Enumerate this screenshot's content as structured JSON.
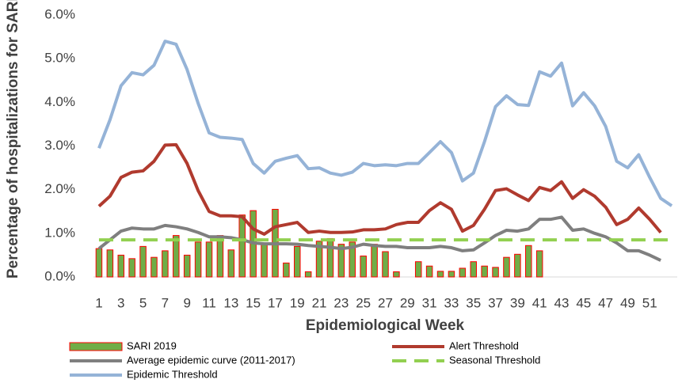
{
  "chart_data": {
    "type": "bar-line",
    "y_label": "Percentage of hospitalizations for SARI",
    "x_label": "Epidemiological Week",
    "categories": [
      "1",
      null,
      "3",
      null,
      "5",
      null,
      "7",
      null,
      "9",
      null,
      "11",
      null,
      "13",
      null,
      "15",
      null,
      "17",
      null,
      "19",
      null,
      "21",
      null,
      "23",
      null,
      "25",
      null,
      "27",
      null,
      "29",
      null,
      "31",
      null,
      "33",
      null,
      "35",
      null,
      "37",
      null,
      "39",
      null,
      "41",
      null,
      "43",
      null,
      "45",
      null,
      "47",
      null,
      "49",
      null,
      "51",
      null,
      null
    ],
    "ylim": [
      0,
      6
    ],
    "yticks": [
      {
        "value": 0,
        "label": "0.0%"
      },
      {
        "value": 1,
        "label": "1.0%"
      },
      {
        "value": 2,
        "label": "2.0%"
      },
      {
        "value": 3,
        "label": "3.0%"
      },
      {
        "value": 4,
        "label": "4.0%"
      },
      {
        "value": 5,
        "label": "5.0%"
      },
      {
        "value": 6,
        "label": "6.0%"
      }
    ],
    "grid": false,
    "series": [
      {
        "name": "SARI 2019",
        "kind": "bar",
        "color": "#70ad47",
        "edge_color": "#ff0000",
        "values": [
          0.65,
          0.62,
          0.5,
          0.42,
          0.7,
          0.45,
          0.6,
          0.95,
          0.5,
          0.8,
          0.8,
          0.95,
          0.62,
          1.42,
          1.52,
          0.75,
          1.55,
          0.32,
          0.7,
          0.12,
          0.82,
          0.88,
          0.75,
          0.8,
          0.48,
          0.75,
          0.58,
          0.12,
          null,
          0.35,
          0.25,
          0.13,
          0.13,
          0.2,
          0.35,
          0.25,
          0.22,
          0.45,
          0.52,
          0.72,
          0.6,
          null,
          null,
          null,
          null,
          null,
          null,
          null,
          null,
          null,
          null,
          null,
          null
        ]
      },
      {
        "name": "Alert Threshold",
        "kind": "line",
        "color": "#b03a2e",
        "dashed": false,
        "values": [
          1.62,
          1.85,
          2.28,
          2.4,
          2.43,
          2.65,
          3.02,
          3.03,
          2.6,
          1.98,
          1.5,
          1.4,
          1.4,
          1.38,
          1.1,
          0.98,
          1.15,
          1.2,
          1.25,
          1.02,
          1.05,
          1.02,
          1.02,
          1.03,
          1.08,
          1.08,
          1.1,
          1.2,
          1.25,
          1.25,
          1.52,
          1.7,
          1.55,
          1.05,
          1.18,
          1.55,
          1.98,
          2.02,
          1.88,
          1.75,
          2.05,
          1.98,
          2.18,
          1.8,
          2.0,
          1.85,
          1.6,
          1.2,
          1.32,
          1.58,
          1.32,
          1.02,
          null
        ]
      },
      {
        "name": "Average epidemic curve (2011-2017)",
        "kind": "line",
        "color": "#7f7f7f",
        "dashed": false,
        "values": [
          0.65,
          0.85,
          1.05,
          1.12,
          1.1,
          1.1,
          1.18,
          1.15,
          1.1,
          1.02,
          0.92,
          0.92,
          0.9,
          0.85,
          0.78,
          0.76,
          0.76,
          0.76,
          0.75,
          0.72,
          0.7,
          0.68,
          0.65,
          0.68,
          0.75,
          0.72,
          0.7,
          0.7,
          0.67,
          0.67,
          0.67,
          0.7,
          0.67,
          0.6,
          0.62,
          0.78,
          0.95,
          1.07,
          1.05,
          1.1,
          1.32,
          1.32,
          1.37,
          1.07,
          1.1,
          1.0,
          0.92,
          0.78,
          0.6,
          0.6,
          0.5,
          0.38,
          null
        ]
      },
      {
        "name": "Seasonal Threshold",
        "kind": "line",
        "color": "#92d050",
        "dashed": true,
        "values": [
          0.85,
          0.85,
          0.85,
          0.85,
          0.85,
          0.85,
          0.85,
          0.85,
          0.85,
          0.85,
          0.85,
          0.85,
          0.85,
          0.85,
          0.85,
          0.85,
          0.85,
          0.85,
          0.85,
          0.85,
          0.85,
          0.85,
          0.85,
          0.85,
          0.85,
          0.85,
          0.85,
          0.85,
          0.85,
          0.85,
          0.85,
          0.85,
          0.85,
          0.85,
          0.85,
          0.85,
          0.85,
          0.85,
          0.85,
          0.85,
          0.85,
          0.85,
          0.85,
          0.85,
          0.85,
          0.85,
          0.85,
          0.85,
          0.85,
          0.85,
          0.85,
          0.85,
          0.85
        ]
      },
      {
        "name": "Epidemic Threshold",
        "kind": "line",
        "color": "#95b3d7",
        "dashed": false,
        "values": [
          2.95,
          3.6,
          4.38,
          4.68,
          4.63,
          4.85,
          5.4,
          5.33,
          4.75,
          3.98,
          3.3,
          3.2,
          3.18,
          3.15,
          2.6,
          2.38,
          2.65,
          2.72,
          2.78,
          2.48,
          2.5,
          2.38,
          2.33,
          2.4,
          2.6,
          2.55,
          2.57,
          2.55,
          2.6,
          2.6,
          2.85,
          3.1,
          2.85,
          2.2,
          2.38,
          3.1,
          3.9,
          4.15,
          3.95,
          3.93,
          4.7,
          4.6,
          4.9,
          3.92,
          4.22,
          3.92,
          3.45,
          2.65,
          2.5,
          2.8,
          2.28,
          1.8,
          1.63
        ]
      }
    ]
  }
}
